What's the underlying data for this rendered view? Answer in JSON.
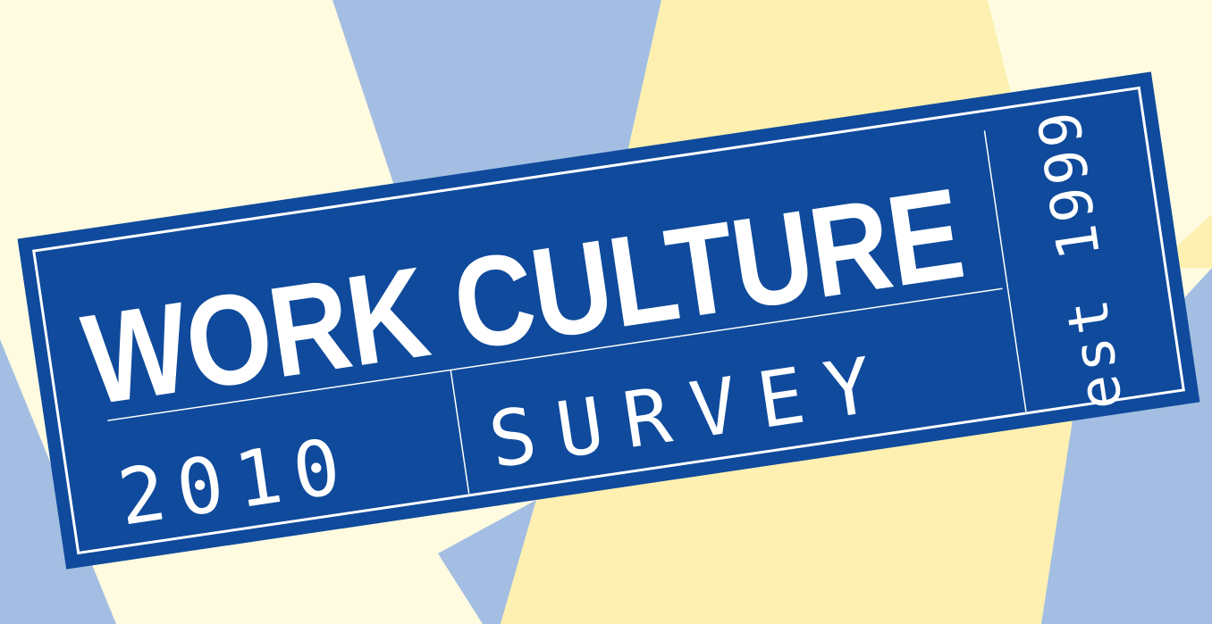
{
  "badge": {
    "title": "WORK CULTURE",
    "year": "2010",
    "subtitle": "SURVEY",
    "est": "est 1999"
  },
  "colors": {
    "badge_fill": "#0F4A9C",
    "badge_text": "#FFFFFF",
    "bg_cream": "#FEFBE0",
    "bg_blue": "#A3BEE2",
    "bg_yellow": "#FEF0B0"
  }
}
